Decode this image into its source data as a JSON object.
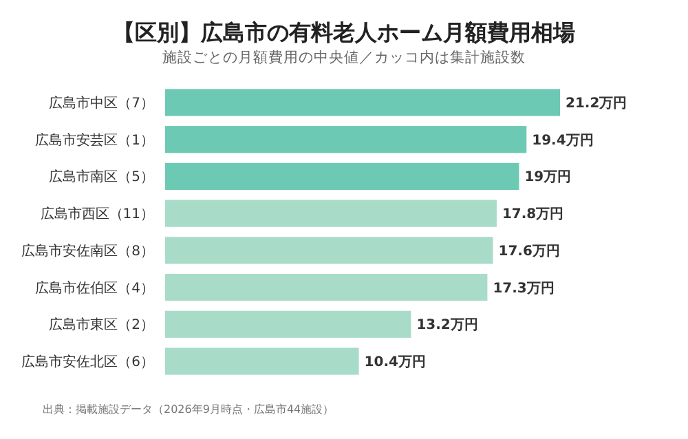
{
  "chart_data": {
    "type": "bar",
    "orientation": "horizontal",
    "title": "【区別】広島市の有料老人ホーム月額費用相場",
    "subtitle": "施設ごとの月額費用の中央値／カッコ内は集計施設数",
    "categories": [
      "広島市中区（7）",
      "広島市安芸区（1）",
      "広島市南区（5）",
      "広島市西区（11）",
      "広島市安佐南区（8）",
      "広島市佐伯区（4）",
      "広島市東区（2）",
      "広島市安佐北区（6）"
    ],
    "values": [
      21.2,
      19.4,
      19,
      17.8,
      17.6,
      17.3,
      13.2,
      10.4
    ],
    "colors": [
      "#6ccab4",
      "#6ccab4",
      "#6ccab4",
      "#a8dcc9",
      "#a8dcc9",
      "#a8dcc9",
      "#a8dcc9",
      "#a8dcc9"
    ],
    "value_labels": [
      "21.2万円",
      "19.4万円",
      "19万円",
      "17.8万円",
      "17.6万円",
      "17.3万円",
      "13.2万円",
      "10.4万円"
    ],
    "annotations": [
      "出典：掲載施設データ（2026年9月時点・広島市44施設）"
    ]
  }
}
